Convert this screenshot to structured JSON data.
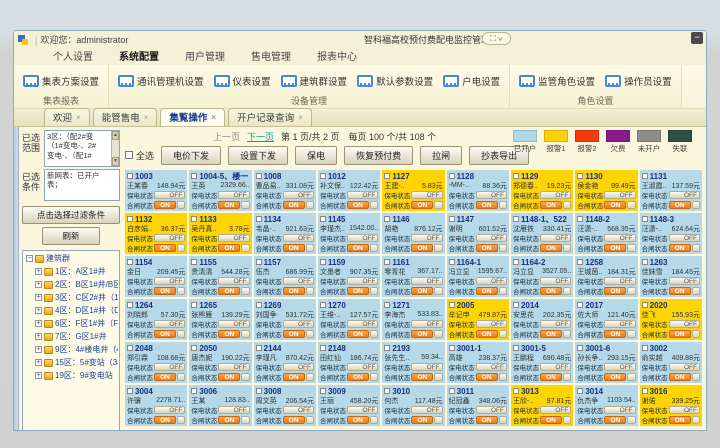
{
  "window": {
    "welcome": "欢迎您：administrator",
    "title": "智科福高校预付费配电监控管理系统",
    "controls": "⛶ ∨",
    "minimize": "−"
  },
  "menu": {
    "items": [
      {
        "label": "个人设置",
        "active": false
      },
      {
        "label": "系统配置",
        "active": true
      },
      {
        "label": "用户管理",
        "active": false
      },
      {
        "label": "售电管理",
        "active": false
      },
      {
        "label": "报表中心",
        "active": false
      }
    ]
  },
  "ribbon": {
    "groups": [
      {
        "name": "集表报表",
        "buttons": [
          "集表方案设置"
        ]
      },
      {
        "name": "设备管理",
        "buttons": [
          "通讯管理机设置",
          "仪表设置",
          "建筑群设置",
          "默认参数设置",
          "户电设置"
        ]
      },
      {
        "name": "角色设置",
        "buttons": [
          "监管角色设置",
          "操作员设置"
        ]
      }
    ]
  },
  "doc_tabs": [
    {
      "label": "欢迎",
      "close": "×",
      "active": false
    },
    {
      "label": "能管售电",
      "close": "×",
      "active": false
    },
    {
      "label": "集覧操作",
      "close": "×",
      "active": true
    },
    {
      "label": "开户记录查询",
      "close": "×",
      "active": false
    }
  ],
  "sidebar": {
    "range_label": "已选\n范围",
    "range_lines": [
      "3区：（配2#变",
      "（1#变电-、2#",
      "变电-、（配1#"
    ],
    "cond_label": "已选\n条件",
    "cond_lines": [
      "新网表：已开户",
      "表；"
    ],
    "filter_button": "点击选择过滤条件",
    "refresh_button": "刷新",
    "tree": {
      "root": "建筑群",
      "nodes": [
        "1区：A区1#井",
        "2区：B区1#井/B区1#井",
        "3区：C区2#井（1#变",
        "4区：D区1#井（D区1",
        "6区：F区1#井（F区1#",
        "7区：G区1#井",
        "9区：4#楼电井（4#楼",
        "15区：5#变站（3#变",
        "19区：9#变电站（2#楼"
      ]
    }
  },
  "toolbar": {
    "prev": "上一页",
    "next": "下一页",
    "page_info": "第 1 页/共 2 页　每页 100 个/共 108 个",
    "select_all": "全选",
    "buttons": [
      "电价下发",
      "设置下发",
      "保电",
      "恢复预付费",
      "拉闸",
      "抄表导出"
    ]
  },
  "legend": {
    "items": [
      {
        "label": "已开户",
        "color": "#aed9e6"
      },
      {
        "label": "报警1",
        "color": "#ffd103"
      },
      {
        "label": "报警2",
        "color": "#f23b0e"
      },
      {
        "label": "欠费",
        "color": "#8b1a8b"
      },
      {
        "label": "未开户",
        "color": "#8c8c8c"
      },
      {
        "label": "失联",
        "color": "#2e4e4a"
      }
    ]
  },
  "card_labels": {
    "keep": "保电状态",
    "switch": "合闸状态",
    "off": "OFF",
    "on": "ON"
  },
  "cards": [
    {
      "room": "1003",
      "name": "王某春",
      "balance": "148.94元",
      "status": "open"
    },
    {
      "room": "1004-5、楼一",
      "name": "王英",
      "balance": "2329.66..",
      "status": "open"
    },
    {
      "room": "1008",
      "name": "曹品易..",
      "balance": "331.08元",
      "status": "open"
    },
    {
      "room": "1012",
      "name": "补文保..",
      "balance": "122.42元",
      "status": "open"
    },
    {
      "room": "1127",
      "name": "王建-..",
      "balance": "5.83元",
      "status": "alarm"
    },
    {
      "room": "1128",
      "name": "-MM-..",
      "balance": "88.36元",
      "status": "open"
    },
    {
      "room": "1129",
      "name": "郑德春..",
      "balance": "19.23元",
      "status": "alarm"
    },
    {
      "room": "1130",
      "name": "侯金艳",
      "balance": "99.49元",
      "status": "alarm"
    },
    {
      "room": "1131",
      "name": "王淑霞..",
      "balance": "137.59元",
      "status": "open"
    },
    {
      "room": "1132",
      "name": "白彦娟..",
      "balance": "36.37元",
      "status": "alarm"
    },
    {
      "room": "1133",
      "name": "吴丹真..",
      "balance": "3.78元",
      "status": "alarm"
    },
    {
      "room": "1134",
      "name": "韦晶-..",
      "balance": "921.63元",
      "status": "open"
    },
    {
      "room": "1145",
      "name": "李瑾杰..",
      "balance": "1542.00..",
      "status": "open"
    },
    {
      "room": "1146",
      "name": "胡艳",
      "balance": "876.12元",
      "status": "open"
    },
    {
      "room": "1147",
      "name": "谢明",
      "balance": "601.52元",
      "status": "open"
    },
    {
      "room": "1148-1、522",
      "name": "沈雁铁",
      "balance": "330.41元",
      "status": "open"
    },
    {
      "room": "1148-2",
      "name": "汪潇-..",
      "balance": "568.35元",
      "status": "open"
    },
    {
      "room": "1148-3",
      "name": "汪潇-..",
      "balance": "624.64元",
      "status": "open"
    },
    {
      "room": "1154",
      "name": "金日",
      "balance": "209.45元",
      "status": "open"
    },
    {
      "room": "1155",
      "name": "贵清清",
      "balance": "544.28元",
      "status": "open"
    },
    {
      "room": "1157",
      "name": "伍杰",
      "balance": "686.99元",
      "status": "open"
    },
    {
      "room": "1159",
      "name": "文墨者",
      "balance": "907.35元",
      "status": "open"
    },
    {
      "room": "1161",
      "name": "零青花",
      "balance": "367.17..",
      "status": "open"
    },
    {
      "room": "1164-1",
      "name": "冯立显",
      "balance": "1595.67..",
      "status": "open"
    },
    {
      "room": "1164-2",
      "name": "冯立显",
      "balance": "3527.05..",
      "status": "open"
    },
    {
      "room": "1258",
      "name": "王城茵..",
      "balance": "184.31元",
      "status": "open"
    },
    {
      "room": "1263",
      "name": "佳妹雪",
      "balance": "184.45元",
      "status": "open"
    },
    {
      "room": "1264",
      "name": "刘晓郎",
      "balance": "57.30元",
      "status": "open"
    },
    {
      "room": "1265",
      "name": "张熊雁",
      "balance": "139.29元",
      "status": "open"
    },
    {
      "room": "1269",
      "name": "刘国争",
      "balance": "531.72元",
      "status": "open"
    },
    {
      "room": "1270",
      "name": "王维-..",
      "balance": "127.57元",
      "status": "open"
    },
    {
      "room": "1271",
      "name": "李海杰",
      "balance": "533.83..",
      "status": "open"
    },
    {
      "room": "2005",
      "name": "牟记申",
      "balance": "479.87元",
      "status": "alarm"
    },
    {
      "room": "2014",
      "name": "安思花",
      "balance": "202.35元",
      "status": "open"
    },
    {
      "room": "2017",
      "name": "佐大师",
      "balance": "121.40元",
      "status": "open"
    },
    {
      "room": "2020",
      "name": "佳飞",
      "balance": "155.93元",
      "status": "alarm"
    },
    {
      "room": "2048",
      "name": "郑引霖",
      "balance": "108.68元",
      "status": "open"
    },
    {
      "room": "2050",
      "name": "唐杰妮",
      "balance": "190.22元",
      "status": "open"
    },
    {
      "room": "2144",
      "name": "李瑾凡",
      "balance": "870.42元",
      "status": "open"
    },
    {
      "room": "2148",
      "name": "田红仙",
      "balance": "186.74元",
      "status": "open"
    },
    {
      "room": "2193",
      "name": "张先生..",
      "balance": "59.34..",
      "status": "open"
    },
    {
      "room": "3001-1",
      "name": "高雄",
      "balance": "238.37元",
      "status": "open"
    },
    {
      "room": "3001-5",
      "name": "王鹏程",
      "balance": "690.48元",
      "status": "open"
    },
    {
      "room": "3001-6",
      "name": "孙长争..",
      "balance": "293.15元",
      "status": "open"
    },
    {
      "room": "3002",
      "name": "俞实越",
      "balance": "409.88元",
      "status": "open"
    },
    {
      "room": "3004",
      "name": "许骥",
      "balance": "2278.71..",
      "status": "open"
    },
    {
      "room": "3006",
      "name": "王某",
      "balance": "128.83..",
      "status": "open"
    },
    {
      "room": "3008",
      "name": "周文英",
      "balance": "206.54元",
      "status": "open"
    },
    {
      "room": "3009",
      "name": "王丽",
      "balance": "458.20元",
      "status": "open"
    },
    {
      "room": "3010",
      "name": "何杰",
      "balance": "117.48元",
      "status": "open"
    },
    {
      "room": "3011",
      "name": "纪冠鑫",
      "balance": "348.06元",
      "status": "open"
    },
    {
      "room": "3013",
      "name": "王欣-..",
      "balance": "97.81元",
      "status": "alarm"
    },
    {
      "room": "3014",
      "name": "仇杰争",
      "balance": "1103.54..",
      "status": "open"
    },
    {
      "room": "3016",
      "name": "谢偌",
      "balance": "339.25元",
      "status": "alarm"
    }
  ]
}
